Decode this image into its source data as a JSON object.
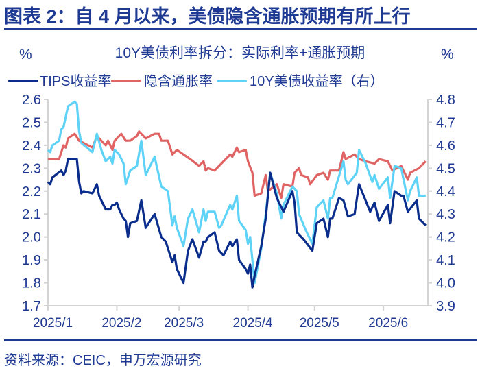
{
  "figure_title": "图表 2：自 4 月以来，美债隐含通胀预期有所上行",
  "source": "资料来源：CEIC，申万宏源研究",
  "colors": {
    "title": "#1f3a93",
    "tips": "#0a2d8c",
    "breakeven": "#e06464",
    "ust10y": "#5ed2f7",
    "axis": "#d4d4d4"
  },
  "chart_data": {
    "type": "line",
    "title": "10Y美债利率拆分：实际利率+通胀预期",
    "ylabel_left": "%",
    "ylabel_right": "%",
    "ylim_left": [
      1.7,
      2.6
    ],
    "ylim_right": [
      3.9,
      4.8
    ],
    "yticks_left": [
      "2.6",
      "2.5",
      "2.4",
      "2.3",
      "2.2",
      "2.1",
      "2.0",
      "1.9",
      "1.8",
      "1.7"
    ],
    "yticks_right": [
      "4.8",
      "4.7",
      "4.6",
      "4.5",
      "4.4",
      "4.3",
      "4.2",
      "4.1",
      "4.0",
      "3.9"
    ],
    "xticks": [
      {
        "date": "2025-01-01",
        "label": "2025/1"
      },
      {
        "date": "2025-02-01",
        "label": "2025/2"
      },
      {
        "date": "2025-03-01",
        "label": "2025/3"
      },
      {
        "date": "2025-04-01",
        "label": "2025/4"
      },
      {
        "date": "2025-05-01",
        "label": "2025/5"
      },
      {
        "date": "2025-06-01",
        "label": "2025/6"
      }
    ],
    "xlim": [
      "2025-01-01",
      "2025-06-21"
    ],
    "grid": false,
    "legend_position": "top",
    "series": [
      {
        "name": "TIPS收益率",
        "axis": "left",
        "color": "#0a2d8c",
        "points": [
          [
            "2025-01-01",
            2.24
          ],
          [
            "2025-01-02",
            2.23
          ],
          [
            "2025-01-03",
            2.26
          ],
          [
            "2025-01-07",
            2.29
          ],
          [
            "2025-01-08",
            2.27
          ],
          [
            "2025-01-09",
            2.29
          ],
          [
            "2025-01-10",
            2.34
          ],
          [
            "2025-01-14",
            2.34
          ],
          [
            "2025-01-15",
            2.24
          ],
          [
            "2025-01-16",
            2.19
          ],
          [
            "2025-01-17",
            2.2
          ],
          [
            "2025-01-21",
            2.19
          ],
          [
            "2025-01-23",
            2.23
          ],
          [
            "2025-01-24",
            2.18
          ],
          [
            "2025-01-27",
            2.12
          ],
          [
            "2025-01-29",
            2.12
          ],
          [
            "2025-01-30",
            2.14
          ],
          [
            "2025-01-31",
            2.14
          ],
          [
            "2025-02-01",
            2.15
          ],
          [
            "2025-02-02",
            2.12
          ],
          [
            "2025-02-04",
            2.08
          ],
          [
            "2025-02-05",
            2.07
          ],
          [
            "2025-02-06",
            2.0
          ],
          [
            "2025-02-07",
            2.06
          ],
          [
            "2025-02-10",
            2.07
          ],
          [
            "2025-02-12",
            2.16
          ],
          [
            "2025-02-14",
            2.04
          ],
          [
            "2025-02-18",
            2.1
          ],
          [
            "2025-02-21",
            2.0
          ],
          [
            "2025-02-23",
            1.98
          ],
          [
            "2025-02-26",
            1.89
          ],
          [
            "2025-02-27",
            1.92
          ],
          [
            "2025-02-28",
            1.86
          ],
          [
            "2025-03-03",
            1.8
          ],
          [
            "2025-03-05",
            1.94
          ],
          [
            "2025-03-07",
            1.99
          ],
          [
            "2025-03-10",
            1.91
          ],
          [
            "2025-03-12",
            1.98
          ],
          [
            "2025-03-13",
            1.98
          ],
          [
            "2025-03-14",
            2.0
          ],
          [
            "2025-03-17",
            2.02
          ],
          [
            "2025-03-19",
            1.94
          ],
          [
            "2025-03-21",
            1.92
          ],
          [
            "2025-03-24",
            1.98
          ],
          [
            "2025-03-25",
            1.96
          ],
          [
            "2025-03-27",
            1.99
          ],
          [
            "2025-03-28",
            1.9
          ],
          [
            "2025-03-31",
            1.86
          ],
          [
            "2025-04-01",
            1.84
          ],
          [
            "2025-04-02",
            1.88
          ],
          [
            "2025-04-03",
            1.78
          ],
          [
            "2025-04-04",
            1.83
          ],
          [
            "2025-04-07",
            1.96
          ],
          [
            "2025-04-09",
            2.08
          ],
          [
            "2025-04-11",
            2.28
          ],
          [
            "2025-04-14",
            2.17
          ],
          [
            "2025-04-17",
            2.11
          ],
          [
            "2025-04-21",
            2.2
          ],
          [
            "2025-04-22",
            2.15
          ],
          [
            "2025-04-23",
            2.02
          ],
          [
            "2025-04-26",
            1.99
          ],
          [
            "2025-04-30",
            1.94
          ],
          [
            "2025-05-02",
            2.06
          ],
          [
            "2025-05-05",
            2.08
          ],
          [
            "2025-05-07",
            2.0
          ],
          [
            "2025-05-08",
            2.08
          ],
          [
            "2025-05-09",
            2.08
          ],
          [
            "2025-05-12",
            2.17
          ],
          [
            "2025-05-14",
            2.16
          ],
          [
            "2025-05-16",
            2.09
          ],
          [
            "2025-05-19",
            2.1
          ],
          [
            "2025-05-21",
            2.23
          ],
          [
            "2025-05-26",
            2.11
          ],
          [
            "2025-05-28",
            2.15
          ],
          [
            "2025-05-30",
            2.07
          ],
          [
            "2025-06-03",
            2.14
          ],
          [
            "2025-06-04",
            2.06
          ],
          [
            "2025-06-06",
            2.2
          ],
          [
            "2025-06-09",
            2.18
          ],
          [
            "2025-06-10",
            2.18
          ],
          [
            "2025-06-12",
            2.11
          ],
          [
            "2025-06-16",
            2.16
          ],
          [
            "2025-06-17",
            2.08
          ],
          [
            "2025-06-20",
            2.05
          ]
        ]
      },
      {
        "name": "隐含通胀率",
        "axis": "left",
        "color": "#e06464",
        "points": [
          [
            "2025-01-01",
            2.34
          ],
          [
            "2025-01-06",
            2.34
          ],
          [
            "2025-01-08",
            2.4
          ],
          [
            "2025-01-09",
            2.39
          ],
          [
            "2025-01-10",
            2.43
          ],
          [
            "2025-01-13",
            2.45
          ],
          [
            "2025-01-15",
            2.42
          ],
          [
            "2025-01-21",
            2.39
          ],
          [
            "2025-01-23",
            2.44
          ],
          [
            "2025-01-27",
            2.4
          ],
          [
            "2025-01-28",
            2.42
          ],
          [
            "2025-01-30",
            2.38
          ],
          [
            "2025-01-31",
            2.42
          ],
          [
            "2025-02-03",
            2.45
          ],
          [
            "2025-02-05",
            2.42
          ],
          [
            "2025-02-07",
            2.42
          ],
          [
            "2025-02-10",
            2.44
          ],
          [
            "2025-02-11",
            2.46
          ],
          [
            "2025-02-14",
            2.43
          ],
          [
            "2025-02-18",
            2.45
          ],
          [
            "2025-02-20",
            2.45
          ],
          [
            "2025-02-21",
            2.42
          ],
          [
            "2025-02-24",
            2.42
          ],
          [
            "2025-02-26",
            2.36
          ],
          [
            "2025-02-28",
            2.38
          ],
          [
            "2025-03-03",
            2.36
          ],
          [
            "2025-03-06",
            2.34
          ],
          [
            "2025-03-10",
            2.31
          ],
          [
            "2025-03-12",
            2.33
          ],
          [
            "2025-03-13",
            2.29
          ],
          [
            "2025-03-14",
            2.3
          ],
          [
            "2025-03-17",
            2.29
          ],
          [
            "2025-03-19",
            2.31
          ],
          [
            "2025-03-24",
            2.36
          ],
          [
            "2025-03-25",
            2.35
          ],
          [
            "2025-03-27",
            2.39
          ],
          [
            "2025-03-28",
            2.37
          ],
          [
            "2025-03-31",
            2.38
          ],
          [
            "2025-04-01",
            2.33
          ],
          [
            "2025-04-03",
            2.28
          ],
          [
            "2025-04-04",
            2.18
          ],
          [
            "2025-04-07",
            2.19
          ],
          [
            "2025-04-09",
            2.27
          ],
          [
            "2025-04-10",
            2.2
          ],
          [
            "2025-04-14",
            2.23
          ],
          [
            "2025-04-16",
            2.17
          ],
          [
            "2025-04-17",
            2.23
          ],
          [
            "2025-04-21",
            2.22
          ],
          [
            "2025-04-22",
            2.28
          ],
          [
            "2025-04-24",
            2.3
          ],
          [
            "2025-04-25",
            2.27
          ],
          [
            "2025-04-28",
            2.26
          ],
          [
            "2025-04-29",
            2.23
          ],
          [
            "2025-05-02",
            2.27
          ],
          [
            "2025-05-05",
            2.28
          ],
          [
            "2025-05-07",
            2.25
          ],
          [
            "2025-05-08",
            2.29
          ],
          [
            "2025-05-12",
            2.29
          ],
          [
            "2025-05-14",
            2.37
          ],
          [
            "2025-05-15",
            2.34
          ],
          [
            "2025-05-19",
            2.36
          ],
          [
            "2025-05-21",
            2.34
          ],
          [
            "2025-05-24",
            2.33
          ],
          [
            "2025-05-28",
            2.32
          ],
          [
            "2025-05-30",
            2.34
          ],
          [
            "2025-06-03",
            2.33
          ],
          [
            "2025-06-05",
            2.29
          ],
          [
            "2025-06-09",
            2.31
          ],
          [
            "2025-06-12",
            2.25
          ],
          [
            "2025-06-13",
            2.28
          ],
          [
            "2025-06-17",
            2.3
          ],
          [
            "2025-06-20",
            2.33
          ]
        ]
      },
      {
        "name": "10Y美债收益率（右）",
        "axis": "right",
        "color": "#5ed2f7",
        "points": [
          [
            "2025-01-01",
            4.58
          ],
          [
            "2025-01-02",
            4.57
          ],
          [
            "2025-01-03",
            4.6
          ],
          [
            "2025-01-06",
            4.62
          ],
          [
            "2025-01-07",
            4.67
          ],
          [
            "2025-01-08",
            4.68
          ],
          [
            "2025-01-10",
            4.77
          ],
          [
            "2025-01-13",
            4.79
          ],
          [
            "2025-01-14",
            4.78
          ],
          [
            "2025-01-15",
            4.66
          ],
          [
            "2025-01-16",
            4.61
          ],
          [
            "2025-01-21",
            4.57
          ],
          [
            "2025-01-23",
            4.65
          ],
          [
            "2025-01-25",
            4.58
          ],
          [
            "2025-01-27",
            4.53
          ],
          [
            "2025-01-29",
            4.55
          ],
          [
            "2025-01-30",
            4.52
          ],
          [
            "2025-01-31",
            4.58
          ],
          [
            "2025-02-02",
            4.56
          ],
          [
            "2025-02-04",
            4.52
          ],
          [
            "2025-02-05",
            4.43
          ],
          [
            "2025-02-07",
            4.49
          ],
          [
            "2025-02-10",
            4.51
          ],
          [
            "2025-02-12",
            4.62
          ],
          [
            "2025-02-14",
            4.47
          ],
          [
            "2025-02-18",
            4.55
          ],
          [
            "2025-02-21",
            4.42
          ],
          [
            "2025-02-24",
            4.4
          ],
          [
            "2025-02-26",
            4.25
          ],
          [
            "2025-02-27",
            4.29
          ],
          [
            "2025-02-28",
            4.24
          ],
          [
            "2025-03-03",
            4.16
          ],
          [
            "2025-03-05",
            4.28
          ],
          [
            "2025-03-07",
            4.32
          ],
          [
            "2025-03-10",
            4.22
          ],
          [
            "2025-03-12",
            4.32
          ],
          [
            "2025-03-13",
            4.27
          ],
          [
            "2025-03-14",
            4.31
          ],
          [
            "2025-03-17",
            4.31
          ],
          [
            "2025-03-19",
            4.24
          ],
          [
            "2025-03-20",
            4.25
          ],
          [
            "2025-03-24",
            4.34
          ],
          [
            "2025-03-25",
            4.32
          ],
          [
            "2025-03-27",
            4.38
          ],
          [
            "2025-03-28",
            4.27
          ],
          [
            "2025-03-31",
            4.23
          ],
          [
            "2025-04-01",
            4.17
          ],
          [
            "2025-04-02",
            4.2
          ],
          [
            "2025-04-04",
            4.0
          ],
          [
            "2025-04-07",
            4.15
          ],
          [
            "2025-04-09",
            4.3
          ],
          [
            "2025-04-11",
            4.48
          ],
          [
            "2025-04-14",
            4.39
          ],
          [
            "2025-04-16",
            4.28
          ],
          [
            "2025-04-17",
            4.34
          ],
          [
            "2025-04-21",
            4.42
          ],
          [
            "2025-04-23",
            4.4
          ],
          [
            "2025-04-24",
            4.3
          ],
          [
            "2025-04-27",
            4.23
          ],
          [
            "2025-04-30",
            4.17
          ],
          [
            "2025-05-02",
            4.33
          ],
          [
            "2025-05-05",
            4.36
          ],
          [
            "2025-05-07",
            4.28
          ],
          [
            "2025-05-08",
            4.37
          ],
          [
            "2025-05-09",
            4.37
          ],
          [
            "2025-05-14",
            4.53
          ],
          [
            "2025-05-15",
            4.45
          ],
          [
            "2025-05-16",
            4.43
          ],
          [
            "2025-05-20",
            4.48
          ],
          [
            "2025-05-21",
            4.58
          ],
          [
            "2025-05-24",
            4.52
          ],
          [
            "2025-05-27",
            4.44
          ],
          [
            "2025-05-28",
            4.47
          ],
          [
            "2025-05-30",
            4.41
          ],
          [
            "2025-06-03",
            4.46
          ],
          [
            "2025-06-04",
            4.37
          ],
          [
            "2025-06-06",
            4.51
          ],
          [
            "2025-06-09",
            4.5
          ],
          [
            "2025-06-12",
            4.36
          ],
          [
            "2025-06-13",
            4.4
          ],
          [
            "2025-06-16",
            4.46
          ],
          [
            "2025-06-17",
            4.38
          ],
          [
            "2025-06-20",
            4.38
          ]
        ]
      }
    ]
  }
}
